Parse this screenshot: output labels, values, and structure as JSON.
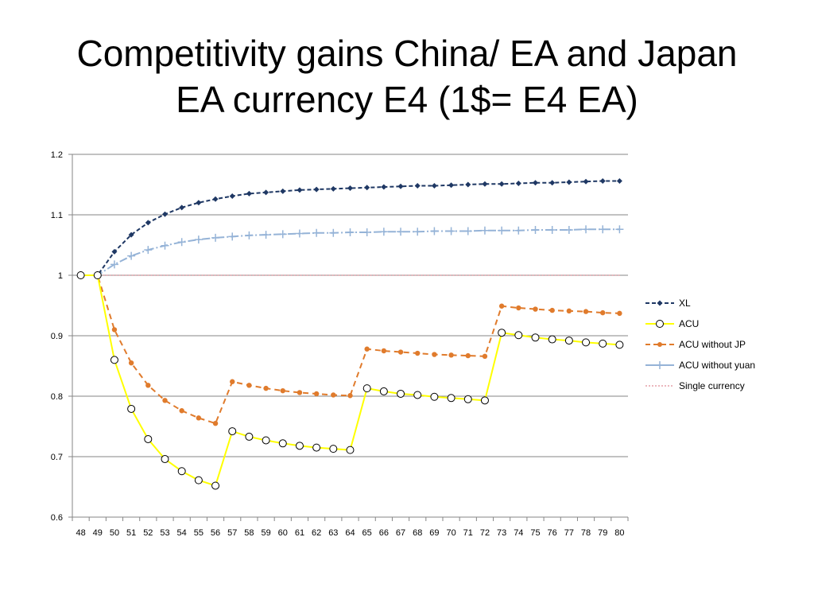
{
  "title": {
    "line1": "Competitivity gains China/ EA and Japan",
    "line2": "EA currency E4 (1$= E4 EA)"
  },
  "chart_data": {
    "type": "line",
    "x": [
      48,
      49,
      50,
      51,
      52,
      53,
      54,
      55,
      56,
      57,
      58,
      59,
      60,
      61,
      62,
      63,
      64,
      65,
      66,
      67,
      68,
      69,
      70,
      71,
      72,
      73,
      74,
      75,
      76,
      77,
      78,
      79,
      80
    ],
    "ylim": [
      0.6,
      1.2
    ],
    "yticks": [
      0.6,
      0.7,
      0.8,
      0.9,
      1,
      1.1,
      1.2
    ],
    "ytick_labels": [
      "0.6",
      "0.7",
      "0.8",
      "0.9",
      "1",
      "1.1",
      "1.2"
    ],
    "grid": true,
    "legend_position": "right",
    "xlabel": "",
    "ylabel": "",
    "series": [
      {
        "name": "XL",
        "color": "#1f3864",
        "values": [
          1,
          1,
          1.039,
          1.067,
          1.087,
          1.101,
          1.112,
          1.12,
          1.126,
          1.131,
          1.135,
          1.137,
          1.139,
          1.141,
          1.142,
          1.143,
          1.144,
          1.145,
          1.146,
          1.147,
          1.148,
          1.148,
          1.149,
          1.15,
          1.151,
          1.151,
          1.152,
          1.153,
          1.153,
          1.154,
          1.155,
          1.156,
          1.156
        ]
      },
      {
        "name": "ACU",
        "color": "#ffff00",
        "values": [
          1,
          1,
          0.86,
          0.779,
          0.729,
          0.696,
          0.676,
          0.661,
          0.652,
          0.742,
          0.733,
          0.727,
          0.722,
          0.718,
          0.715,
          0.713,
          0.711,
          0.813,
          0.808,
          0.804,
          0.802,
          0.799,
          0.797,
          0.795,
          0.793,
          0.905,
          0.901,
          0.897,
          0.894,
          0.892,
          0.889,
          0.887,
          0.885
        ]
      },
      {
        "name": "ACU without JP",
        "color": "#e07b2c",
        "values": [
          1,
          1,
          0.91,
          0.855,
          0.818,
          0.793,
          0.776,
          0.764,
          0.755,
          0.824,
          0.818,
          0.813,
          0.809,
          0.806,
          0.804,
          0.802,
          0.801,
          0.878,
          0.875,
          0.873,
          0.871,
          0.869,
          0.868,
          0.867,
          0.866,
          0.949,
          0.946,
          0.944,
          0.942,
          0.941,
          0.94,
          0.938,
          0.937
        ]
      },
      {
        "name": "ACU without yuan",
        "color": "#95b3d7",
        "values": [
          1,
          1,
          1.018,
          1.032,
          1.042,
          1.049,
          1.055,
          1.059,
          1.062,
          1.064,
          1.066,
          1.067,
          1.068,
          1.069,
          1.07,
          1.07,
          1.071,
          1.071,
          1.072,
          1.072,
          1.072,
          1.073,
          1.073,
          1.073,
          1.074,
          1.074,
          1.074,
          1.075,
          1.075,
          1.075,
          1.076,
          1.076,
          1.076
        ]
      },
      {
        "name": "Single currency",
        "color": "#e6a0a8",
        "values": [
          1,
          1,
          1,
          1,
          1,
          1,
          1,
          1,
          1,
          1,
          1,
          1,
          1,
          1,
          1,
          1,
          1,
          1,
          1,
          1,
          1,
          1,
          1,
          1,
          1,
          1,
          1,
          1,
          1,
          1,
          1,
          1,
          1
        ]
      }
    ]
  }
}
